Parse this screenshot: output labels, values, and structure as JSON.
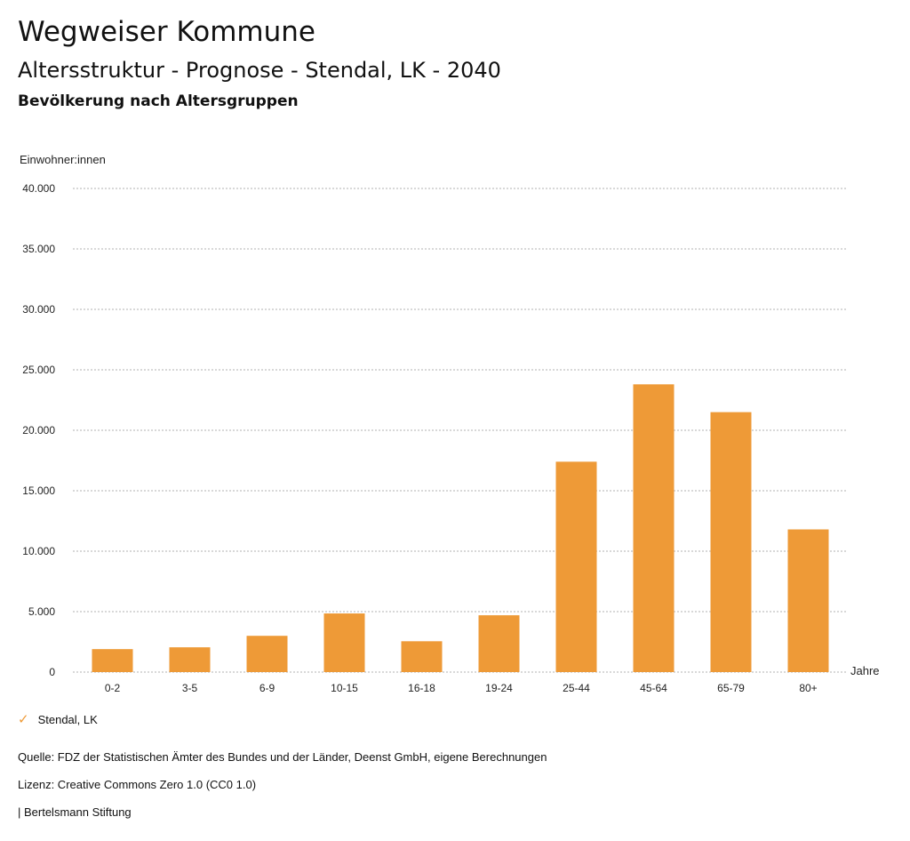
{
  "header": {
    "title": "Wegweiser Kommune",
    "subtitle": "Altersstruktur - Prognose - Stendal, LK - 2040",
    "chart_heading": "Bevölkerung nach Altersgruppen"
  },
  "legend": {
    "check_icon": "checkmark-icon",
    "label": "Stendal, LK"
  },
  "footer": {
    "source": "Quelle: FDZ der Statistischen Ämter des Bundes und der Länder, Deenst GmbH, eigene Berechnungen",
    "license": "Lizenz: Creative Commons Zero 1.0 (CC0 1.0)",
    "publisher": "| Bertelsmann Stiftung"
  },
  "colors": {
    "bar": "#ee9a37",
    "grid": "#b0b0b0"
  },
  "chart_data": {
    "type": "bar",
    "categories": [
      "0-2",
      "3-5",
      "6-9",
      "10-15",
      "16-18",
      "19-24",
      "25-44",
      "45-64",
      "65-79",
      "80+"
    ],
    "series": [
      {
        "name": "Stendal, LK",
        "values": [
          1900,
          2050,
          3000,
          4850,
          2550,
          4700,
          17400,
          23800,
          21500,
          11800
        ]
      }
    ],
    "ylabel": "Einwohner:innen",
    "xlabel": "Jahre",
    "ylim": [
      0,
      40000
    ],
    "yticks": [
      0,
      5000,
      10000,
      15000,
      20000,
      25000,
      30000,
      35000,
      40000
    ],
    "ytick_labels": [
      "0",
      "5.000",
      "10.000",
      "15.000",
      "20.000",
      "25.000",
      "30.000",
      "35.000",
      "40.000"
    ],
    "grid": true,
    "legend_position": "bottom-left"
  }
}
